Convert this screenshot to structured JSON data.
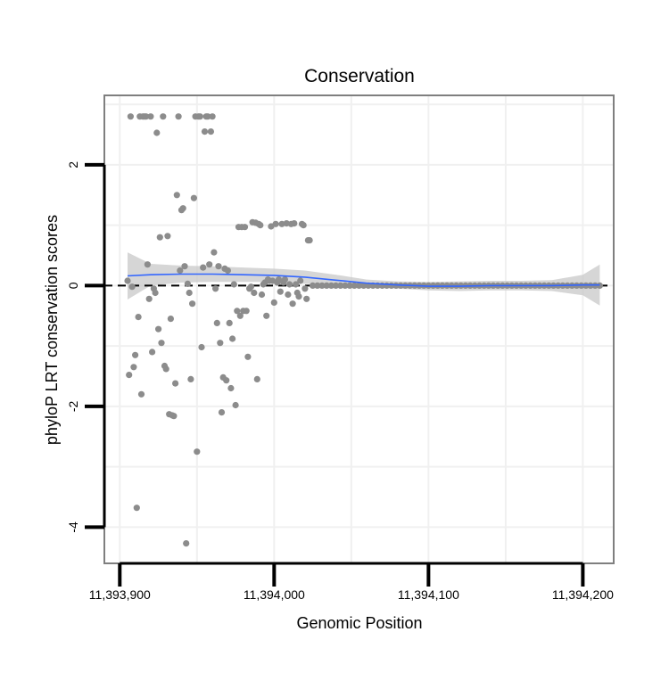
{
  "chart_data": {
    "type": "scatter",
    "title": "Conservation",
    "xlabel": "Genomic Position",
    "ylabel": "phyloP LRT conservation scores",
    "xlim": [
      11393890,
      11394220
    ],
    "ylim": [
      -4.6,
      3.15
    ],
    "x_ticks": [
      {
        "value": 11393900,
        "label": "11,393,900"
      },
      {
        "value": 11394000,
        "label": "11,394,000"
      },
      {
        "value": 11394100,
        "label": "11,394,100"
      },
      {
        "value": 11394200,
        "label": "11,394,200"
      }
    ],
    "y_ticks": [
      {
        "value": 2,
        "label": "2"
      },
      {
        "value": 0,
        "label": "0"
      },
      {
        "value": -2,
        "label": "-2"
      },
      {
        "value": -4,
        "label": "-4"
      }
    ],
    "reference_line": {
      "y": 0,
      "style": "dashed"
    },
    "colors": {
      "points": "#8c8c8c",
      "smooth_line": "#3366ff",
      "confidence_band": "#c8c8c8",
      "panel_border": "#7f7f7f",
      "grid": "#f0f0f0",
      "axis": "#000000"
    },
    "points": [
      [
        11393905,
        0.08
      ],
      [
        11393906,
        -1.48
      ],
      [
        11393907,
        2.8
      ],
      [
        11393908,
        -0.02
      ],
      [
        11393909,
        -1.35
      ],
      [
        11393910,
        -1.15
      ],
      [
        11393911,
        -3.68
      ],
      [
        11393912,
        -0.52
      ],
      [
        11393913,
        2.8
      ],
      [
        11393914,
        -1.8
      ],
      [
        11393915,
        2.8
      ],
      [
        11393916,
        2.8
      ],
      [
        11393917,
        2.8
      ],
      [
        11393918,
        0.35
      ],
      [
        11393919,
        -0.22
      ],
      [
        11393920,
        2.8
      ],
      [
        11393921,
        -1.1
      ],
      [
        11393922,
        -0.05
      ],
      [
        11393923,
        -0.12
      ],
      [
        11393924,
        2.53
      ],
      [
        11393925,
        -0.72
      ],
      [
        11393926,
        0.8
      ],
      [
        11393927,
        -0.95
      ],
      [
        11393928,
        2.8
      ],
      [
        11393929,
        -1.33
      ],
      [
        11393930,
        -1.38
      ],
      [
        11393931,
        0.82
      ],
      [
        11393932,
        -2.13
      ],
      [
        11393933,
        -0.55
      ],
      [
        11393934,
        -2.15
      ],
      [
        11393935,
        -2.16
      ],
      [
        11393936,
        -1.62
      ],
      [
        11393937,
        1.5
      ],
      [
        11393938,
        2.8
      ],
      [
        11393939,
        0.25
      ],
      [
        11393940,
        1.25
      ],
      [
        11393941,
        1.28
      ],
      [
        11393942,
        0.32
      ],
      [
        11393943,
        -4.27
      ],
      [
        11393944,
        0.03
      ],
      [
        11393945,
        -0.12
      ],
      [
        11393946,
        -1.55
      ],
      [
        11393947,
        -0.3
      ],
      [
        11393948,
        1.45
      ],
      [
        11393949,
        2.8
      ],
      [
        11393950,
        -2.75
      ],
      [
        11393951,
        2.8
      ],
      [
        11393952,
        2.8
      ],
      [
        11393953,
        -1.02
      ],
      [
        11393954,
        0.3
      ],
      [
        11393955,
        2.55
      ],
      [
        11393956,
        2.8
      ],
      [
        11393957,
        2.8
      ],
      [
        11393958,
        0.35
      ],
      [
        11393959,
        2.55
      ],
      [
        11393960,
        2.8
      ],
      [
        11393961,
        0.55
      ],
      [
        11393962,
        -0.05
      ],
      [
        11393963,
        -0.62
      ],
      [
        11393964,
        0.32
      ],
      [
        11393965,
        -0.95
      ],
      [
        11393966,
        -2.1
      ],
      [
        11393967,
        -1.52
      ],
      [
        11393968,
        0.28
      ],
      [
        11393969,
        -1.57
      ],
      [
        11393970,
        0.25
      ],
      [
        11393971,
        -0.62
      ],
      [
        11393972,
        -1.7
      ],
      [
        11393973,
        -0.88
      ],
      [
        11393974,
        0.02
      ],
      [
        11393975,
        -1.98
      ],
      [
        11393976,
        -0.42
      ],
      [
        11393977,
        0.97
      ],
      [
        11393978,
        -0.5
      ],
      [
        11393979,
        0.97
      ],
      [
        11393980,
        -0.42
      ],
      [
        11393981,
        0.97
      ],
      [
        11393982,
        -0.42
      ],
      [
        11393983,
        -1.18
      ],
      [
        11393984,
        -0.05
      ],
      [
        11393985,
        -0.02
      ],
      [
        11393986,
        1.05
      ],
      [
        11393987,
        -0.12
      ],
      [
        11393988,
        1.04
      ],
      [
        11393989,
        -1.55
      ],
      [
        11393990,
        1.02
      ],
      [
        11393991,
        1.0
      ],
      [
        11393992,
        -0.15
      ],
      [
        11393993,
        0.02
      ],
      [
        11393994,
        0.05
      ],
      [
        11393995,
        -0.5
      ],
      [
        11393996,
        0.1
      ],
      [
        11393997,
        0.08
      ],
      [
        11393998,
        0.98
      ],
      [
        11393999,
        0.08
      ],
      [
        11394000,
        -0.28
      ],
      [
        11394001,
        1.02
      ],
      [
        11394002,
        0.05
      ],
      [
        11394003,
        0.1
      ],
      [
        11394004,
        -0.1
      ],
      [
        11394005,
        1.02
      ],
      [
        11394006,
        0.05
      ],
      [
        11394007,
        0.1
      ],
      [
        11394008,
        1.03
      ],
      [
        11394009,
        -0.15
      ],
      [
        11394010,
        0.02
      ],
      [
        11394011,
        1.02
      ],
      [
        11394012,
        -0.3
      ],
      [
        11394013,
        1.03
      ],
      [
        11394014,
        0.02
      ],
      [
        11394015,
        -0.12
      ],
      [
        11394016,
        -0.18
      ],
      [
        11394017,
        0.08
      ],
      [
        11394018,
        1.02
      ],
      [
        11394019,
        1.0
      ],
      [
        11394020,
        -0.05
      ],
      [
        11394021,
        -0.22
      ],
      [
        11394022,
        0.75
      ],
      [
        11394023,
        0.75
      ],
      [
        11394025,
        0
      ],
      [
        11394028,
        0
      ],
      [
        11394031,
        0
      ],
      [
        11394034,
        0
      ],
      [
        11394037,
        0
      ],
      [
        11394040,
        0
      ],
      [
        11394043,
        0
      ],
      [
        11394046,
        0
      ],
      [
        11394049,
        0
      ],
      [
        11394052,
        0
      ],
      [
        11394055,
        0
      ],
      [
        11394058,
        0
      ],
      [
        11394061,
        0
      ],
      [
        11394064,
        0
      ],
      [
        11394067,
        0
      ],
      [
        11394070,
        0
      ],
      [
        11394073,
        0
      ],
      [
        11394076,
        0
      ],
      [
        11394079,
        0
      ],
      [
        11394082,
        0
      ],
      [
        11394085,
        0
      ],
      [
        11394088,
        0
      ],
      [
        11394091,
        0
      ],
      [
        11394094,
        0
      ],
      [
        11394097,
        0
      ],
      [
        11394100,
        0
      ],
      [
        11394103,
        0
      ],
      [
        11394106,
        0
      ],
      [
        11394109,
        0
      ],
      [
        11394112,
        0
      ],
      [
        11394115,
        0
      ],
      [
        11394118,
        0
      ],
      [
        11394121,
        0
      ],
      [
        11394124,
        0
      ],
      [
        11394127,
        0
      ],
      [
        11394130,
        0
      ],
      [
        11394133,
        0
      ],
      [
        11394136,
        0
      ],
      [
        11394139,
        0
      ],
      [
        11394142,
        0
      ],
      [
        11394145,
        0
      ],
      [
        11394148,
        0
      ],
      [
        11394151,
        0
      ],
      [
        11394154,
        0
      ],
      [
        11394157,
        0
      ],
      [
        11394160,
        0
      ],
      [
        11394163,
        0
      ],
      [
        11394166,
        0
      ],
      [
        11394169,
        0
      ],
      [
        11394172,
        0
      ],
      [
        11394175,
        0
      ],
      [
        11394178,
        0
      ],
      [
        11394181,
        0
      ],
      [
        11394184,
        0
      ],
      [
        11394187,
        0
      ],
      [
        11394190,
        0
      ],
      [
        11394193,
        0
      ],
      [
        11394196,
        0
      ],
      [
        11394199,
        0
      ],
      [
        11394202,
        0
      ],
      [
        11394205,
        0
      ],
      [
        11394208,
        0
      ],
      [
        11394211,
        0
      ]
    ],
    "smooth_fit": {
      "x": [
        11393905,
        11393920,
        11393940,
        11393960,
        11393980,
        11394000,
        11394020,
        11394040,
        11394060,
        11394080,
        11394100,
        11394120,
        11394140,
        11394160,
        11394180,
        11394200,
        11394211
      ],
      "y": [
        0.16,
        0.18,
        0.19,
        0.19,
        0.18,
        0.17,
        0.14,
        0.09,
        0.04,
        0.01,
        -0.01,
        -0.01,
        0.0,
        0.0,
        0.0,
        0.01,
        0.01
      ],
      "upper": [
        0.55,
        0.36,
        0.33,
        0.32,
        0.3,
        0.28,
        0.25,
        0.18,
        0.1,
        0.07,
        0.06,
        0.07,
        0.08,
        0.08,
        0.09,
        0.18,
        0.35
      ],
      "lower": [
        -0.23,
        0.0,
        0.05,
        0.06,
        0.06,
        0.06,
        0.03,
        0.0,
        -0.02,
        -0.05,
        -0.08,
        -0.09,
        -0.08,
        -0.08,
        -0.09,
        -0.16,
        -0.33
      ]
    }
  }
}
